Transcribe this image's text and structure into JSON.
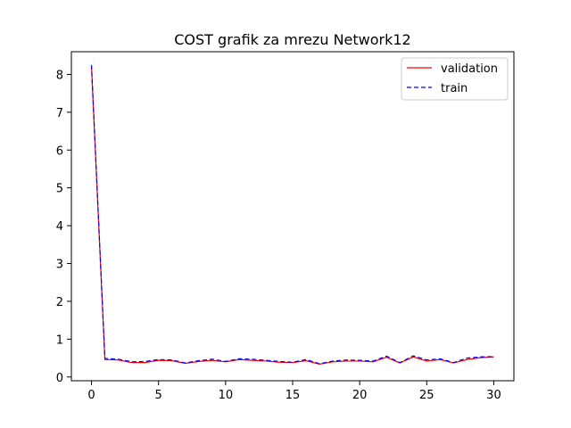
{
  "chart_data": {
    "type": "line",
    "title": "COST grafik za mrezu Network12",
    "xlabel": "",
    "ylabel": "",
    "xlim": [
      -1.5,
      31.5
    ],
    "ylim": [
      -0.1,
      8.6
    ],
    "xticks": [
      0,
      5,
      10,
      15,
      20,
      25,
      30
    ],
    "yticks": [
      0,
      1,
      2,
      3,
      4,
      5,
      6,
      7,
      8
    ],
    "grid": false,
    "legend_position": "top-right",
    "x": [
      0,
      1,
      2,
      3,
      4,
      5,
      6,
      7,
      8,
      9,
      10,
      11,
      12,
      13,
      14,
      15,
      16,
      17,
      18,
      19,
      20,
      21,
      22,
      23,
      24,
      25,
      26,
      27,
      28,
      29,
      30
    ],
    "series": [
      {
        "name": "validation",
        "color": "#ff0000",
        "style": "solid",
        "values": [
          8.2,
          0.46,
          0.45,
          0.38,
          0.38,
          0.44,
          0.43,
          0.36,
          0.41,
          0.44,
          0.4,
          0.46,
          0.44,
          0.42,
          0.39,
          0.38,
          0.43,
          0.34,
          0.4,
          0.42,
          0.42,
          0.4,
          0.52,
          0.37,
          0.53,
          0.42,
          0.46,
          0.37,
          0.46,
          0.51,
          0.53
        ]
      },
      {
        "name": "train",
        "color": "#0000ff",
        "style": "dashed",
        "values": [
          8.25,
          0.49,
          0.47,
          0.4,
          0.41,
          0.46,
          0.45,
          0.37,
          0.43,
          0.47,
          0.41,
          0.48,
          0.47,
          0.44,
          0.41,
          0.39,
          0.46,
          0.35,
          0.42,
          0.45,
          0.44,
          0.42,
          0.55,
          0.38,
          0.56,
          0.45,
          0.48,
          0.38,
          0.5,
          0.53,
          0.54
        ]
      }
    ]
  }
}
